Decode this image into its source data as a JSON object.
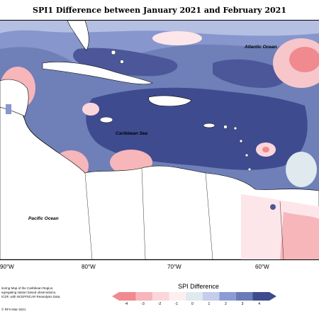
{
  "title": "SPI1 Difference between January 2021 and February 2021",
  "oceans": {
    "atlantic": "Atlantic Ocean",
    "caribbean": "Caribbean Sea",
    "pacific": "Pacific Ocean"
  },
  "longitudes": [
    "90°W",
    "80°W",
    "70°W",
    "60°W"
  ],
  "legend": {
    "title": "SPI Difference",
    "ticks": [
      "-4",
      "-3",
      "-2",
      "-1",
      "0",
      "1",
      "2",
      "3",
      "4"
    ],
    "colors": [
      "#f08a8e",
      "#f6b6ba",
      "#fad6da",
      "#fdeef0",
      "#dfe9ee",
      "#c4cdea",
      "#8c9bd6",
      "#6a7cb6",
      "#3e4b8c"
    ]
  },
  "credits": {
    "line1": "itoring Map of the Caribbean Region,",
    "line2": "egregating station based observations,",
    "line3": "ICDF, with NCEP/NCAR Reanalysis Data.",
    "line4": "© RFH Mar-2021"
  }
}
